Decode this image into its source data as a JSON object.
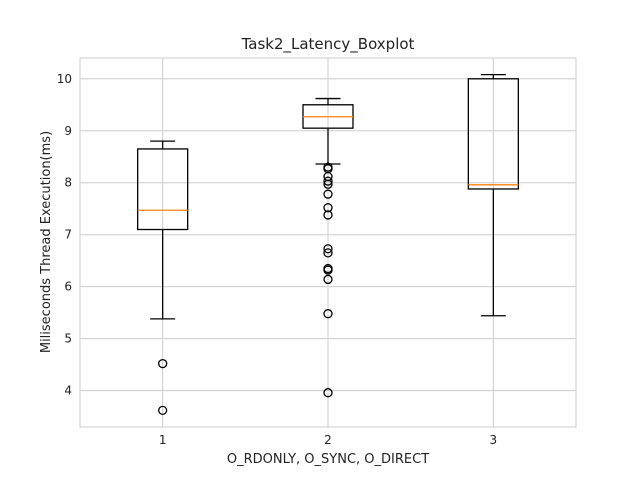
{
  "chart_data": {
    "type": "boxplot",
    "title": "Task2_Latency_Boxplot",
    "xlabel": "O_RDONLY, O_SYNC, O_DIRECT",
    "ylabel": "Miliseconds Thread Execution(ms)",
    "categories": [
      "1",
      "2",
      "3"
    ],
    "ylim": [
      3.3,
      10.4
    ],
    "yticks": [
      4,
      5,
      6,
      7,
      8,
      9,
      10
    ],
    "grid": true,
    "colors": {
      "box": "#000000",
      "median": "#ff7f0e",
      "grid": "#cccccc"
    },
    "boxes": [
      {
        "category": "1",
        "whisker_low": 5.38,
        "q1": 7.1,
        "median": 7.47,
        "q3": 8.65,
        "whisker_high": 8.8,
        "fliers": [
          4.52,
          3.62
        ]
      },
      {
        "category": "2",
        "whisker_low": 8.36,
        "q1": 9.05,
        "median": 9.27,
        "q3": 9.5,
        "whisker_high": 9.62,
        "fliers": [
          8.3,
          8.27,
          8.12,
          8.03,
          7.97,
          7.78,
          7.52,
          7.38,
          6.73,
          6.65,
          6.35,
          6.32,
          6.14,
          5.48,
          3.96
        ]
      },
      {
        "category": "3",
        "whisker_low": 5.44,
        "q1": 7.88,
        "median": 7.96,
        "q3": 10.0,
        "whisker_high": 10.08,
        "fliers": []
      }
    ]
  }
}
